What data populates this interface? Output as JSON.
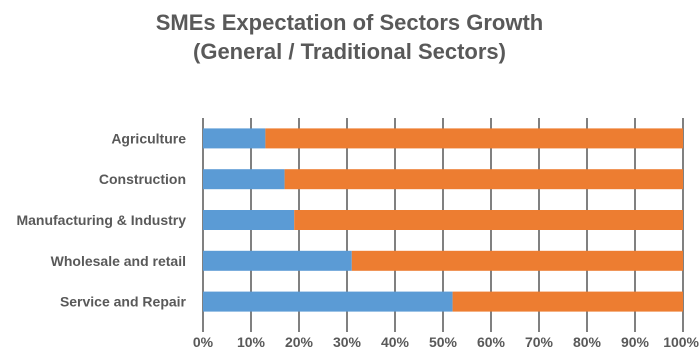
{
  "chart_data": {
    "type": "bar",
    "orientation": "horizontal",
    "stacked": "percent",
    "title": [
      "SMEs Expectation of Sectors Growth",
      "(General / Traditional Sectors)"
    ],
    "categories": [
      "Agriculture",
      "Construction",
      "Manufacturing & Industry",
      "Wholesale and retail",
      "Service and Repair"
    ],
    "series": [
      {
        "values": [
          13,
          17,
          19,
          31,
          52
        ]
      },
      {
        "values": [
          87,
          83,
          81,
          69,
          48
        ]
      }
    ],
    "xlim": [
      0,
      100
    ],
    "xticks": [
      "0%",
      "10%",
      "20%",
      "30%",
      "40%",
      "50%",
      "60%",
      "70%",
      "80%",
      "90%",
      "100%"
    ],
    "grid": "vertical",
    "legend": "none"
  },
  "colors": {
    "series": [
      "#5b9bd5",
      "#ed7d31"
    ],
    "gridline": "#808080",
    "text": "#595959"
  }
}
